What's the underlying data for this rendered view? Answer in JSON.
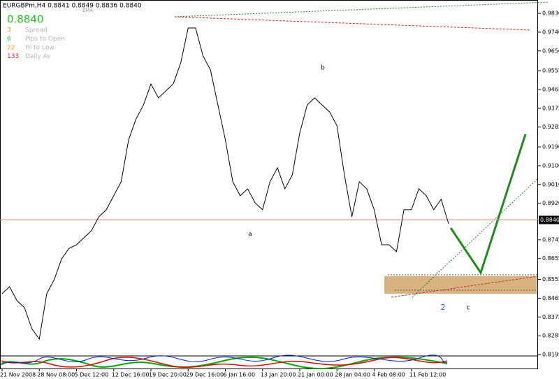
{
  "chart_data": {
    "type": "line",
    "title": "EURGBPm,H4 0.8841 0.8849 0.8836 0.8840",
    "indicator": "EMA",
    "last_price": {
      "value": 0.884,
      "label": "0.8840"
    },
    "info": [
      {
        "number": "3",
        "label": "Spread",
        "color": "#e0a020"
      },
      {
        "number": "6",
        "label": "Pips to Open",
        "color": "#40c040"
      },
      {
        "number": "22",
        "label": "Hi to Low",
        "color": "#f0b030"
      },
      {
        "number": "133",
        "label": "Daily Av",
        "color": "#e03030"
      }
    ],
    "annotations": [
      {
        "text": "a",
        "color": "#000"
      },
      {
        "text": "b",
        "color": "#000"
      },
      {
        "text": "2",
        "color": "#3050d0"
      },
      {
        "text": "c",
        "color": "#000"
      }
    ],
    "categories": [
      "21 Nov 2008",
      null,
      null,
      null,
      null,
      "28 Nov 08:00",
      null,
      null,
      null,
      null,
      "5 Dec 12:00",
      null,
      null,
      null,
      null,
      "12 Dec 16:00",
      null,
      null,
      null,
      null,
      "19 Dec 20:00",
      null,
      null,
      null,
      null,
      "29 Dec 16:00",
      null,
      null,
      null,
      null,
      "6 Jan 16:00",
      null,
      null,
      null,
      null,
      "13 Jan 20:00",
      null,
      null,
      null,
      null,
      "21 Jan 00:00",
      null,
      null,
      null,
      null,
      "28 Jan 04:00",
      null,
      null,
      null,
      null,
      "4 Feb 08:00",
      null,
      null,
      null,
      null,
      "11 Feb 12:00",
      null,
      null,
      null,
      null,
      null
    ],
    "series": [
      {
        "name": "EURGBPm",
        "color": "#000000",
        "values": [
          0.8487,
          0.852,
          0.8453,
          0.842,
          0.8319,
          0.8269,
          0.8487,
          0.8554,
          0.8654,
          0.8704,
          0.8721,
          0.8755,
          0.8788,
          0.8855,
          0.8889,
          0.8956,
          0.9023,
          0.9224,
          0.9324,
          0.9391,
          0.9492,
          0.9425,
          0.9458,
          0.9492,
          0.9592,
          0.976,
          0.976,
          0.9626,
          0.9559,
          0.9391,
          0.9224,
          0.9023,
          0.8956,
          0.8989,
          0.8922,
          0.8889,
          0.9023,
          0.909,
          0.8989,
          0.9056,
          0.9257,
          0.9391,
          0.9425,
          0.9391,
          0.9358,
          0.9291,
          0.9056,
          0.8855,
          0.9023,
          0.8989,
          0.8889,
          0.8721,
          0.8721,
          0.8688,
          0.8889,
          0.8889,
          0.8989,
          0.8956,
          0.8889,
          0.8939,
          0.8822
        ]
      }
    ],
    "ylim": [
      0.8128,
      0.9894
    ],
    "yticks": [
      {
        "value": 0.983,
        "label": "0.9830"
      },
      {
        "value": 0.974,
        "label": "0.9740"
      },
      {
        "value": 0.965,
        "label": "0.9650"
      },
      {
        "value": 0.9555,
        "label": "0.9555"
      },
      {
        "value": 0.9465,
        "label": "0.9465"
      },
      {
        "value": 0.9375,
        "label": "0.9375"
      },
      {
        "value": 0.9285,
        "label": "0.9285"
      },
      {
        "value": 0.919,
        "label": "0.9190"
      },
      {
        "value": 0.91,
        "label": "0.9100"
      },
      {
        "value": 0.901,
        "label": "0.9010"
      },
      {
        "value": 0.892,
        "label": "0.8920"
      },
      {
        "value": 0.8745,
        "label": "0.8745"
      },
      {
        "value": 0.8655,
        "label": "0.8655"
      },
      {
        "value": 0.8555,
        "label": "0.8555"
      },
      {
        "value": 0.8465,
        "label": "0.8465"
      },
      {
        "value": 0.8375,
        "label": "0.8375"
      },
      {
        "value": 0.8285,
        "label": "0.8285"
      },
      {
        "value": 0.8195,
        "label": "0.8195"
      }
    ],
    "grid": false
  }
}
